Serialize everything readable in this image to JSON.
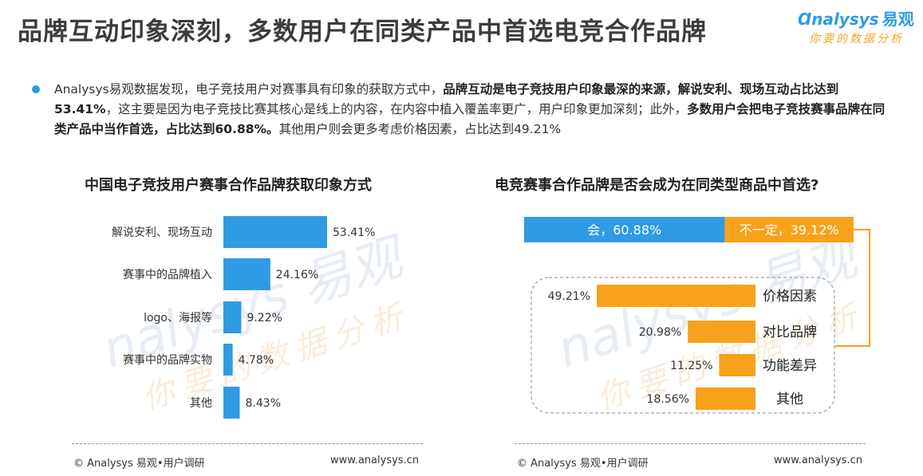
{
  "header": {
    "title": "品牌互动印象深刻，多数用户在同类产品中首选电竞合作品牌",
    "logo_main": "nalysys",
    "logo_brand": "易观",
    "logo_sub": "你要的数据分析"
  },
  "summary": {
    "p1": "Analysys易观数据发现，电子竞技用户对赛事具有印象的获取方式中，",
    "b1": "品牌互动是电子竞技用户印象最深的来源，解说安利、现场互动占比达到53.41%",
    "p2": "，这主要是因为电子竞技比赛其核心是线上的内容，在内容中植入覆盖率更广，用户印象更加深刻；此外，",
    "b2": "多数用户会把电子竞技赛事品牌在同类产品中当作首选，占比达到60.88%。",
    "p3": "其他用户则会更多考虑价格因素，占比达到49.21%"
  },
  "colors": {
    "blue": "#2e9be3",
    "orange": "#f7a21b",
    "gray_dashed": "#b0b0b0"
  },
  "chart_data": [
    {
      "type": "bar",
      "orientation": "horizontal",
      "title": "中国电子竞技用户赛事合作品牌获取印象方式",
      "categories": [
        "解说安利、现场互动",
        "赛事中的品牌植入",
        "logo、海报等",
        "赛事中的品牌实物",
        "其他"
      ],
      "values": [
        53.41,
        24.16,
        9.22,
        4.78,
        8.43
      ],
      "labels": [
        "53.41%",
        "24.16%",
        "9.22%",
        "4.78%",
        "8.43%"
      ],
      "color": "#2e9be3",
      "xlim": [
        0,
        60
      ]
    },
    {
      "type": "bar",
      "orientation": "horizontal",
      "stacked": true,
      "title": "电竞赛事合作品牌是否会成为在同类型商品中首选?",
      "segments": [
        {
          "label": "会，60.88%",
          "value": 60.88,
          "color": "#2e9be3"
        },
        {
          "label": "不一定，39.12%",
          "value": 39.12,
          "color": "#f7a21b"
        }
      ]
    },
    {
      "type": "bar",
      "orientation": "horizontal",
      "direction": "right-to-left",
      "categories": [
        "价格因素",
        "对比品牌",
        "功能差异",
        "其他"
      ],
      "values": [
        49.21,
        20.98,
        11.25,
        18.56
      ],
      "labels": [
        "49.21%",
        "20.98%",
        "11.25%",
        "18.56%"
      ],
      "color": "#f7a21b",
      "xlim": [
        0,
        50
      ]
    }
  ],
  "footer": {
    "left_copyright": "© Analysys 易观•用户调研",
    "left_url": "www.analysys.cn",
    "right_copyright": "© Analysys 易观•用户调研",
    "right_url": "www.analysys.cn"
  },
  "watermark": {
    "main": "nalysys 易观",
    "sub": "你要的数据分析"
  }
}
